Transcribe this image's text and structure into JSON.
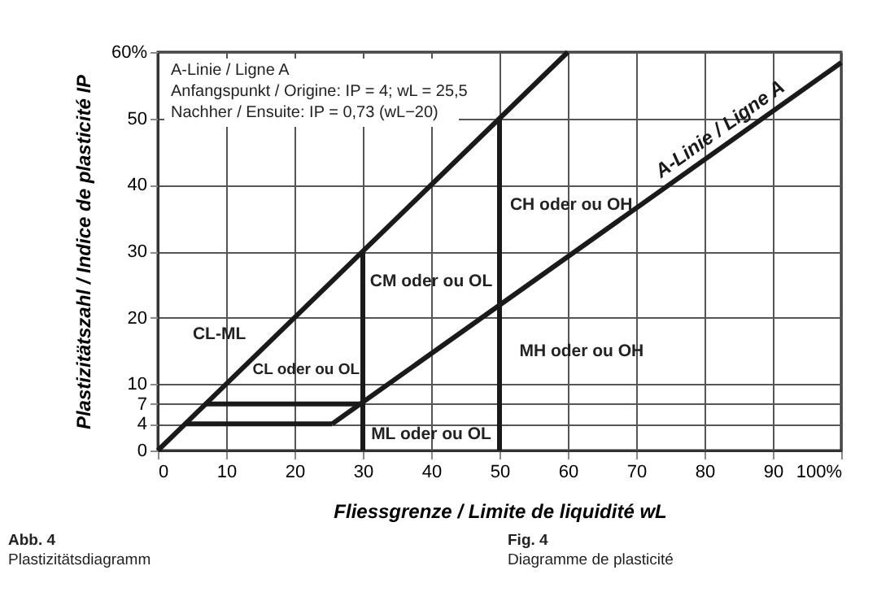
{
  "chart_data": {
    "type": "line",
    "xlabel": "Fliessgrenze / Limite de liquidité wL",
    "ylabel": "Plastizitätszahl / Indice de plasticité IP",
    "xlim": [
      0,
      100
    ],
    "ylim": [
      0,
      60
    ],
    "xticks": [
      0,
      10,
      20,
      30,
      40,
      50,
      60,
      70,
      80,
      90,
      {
        "value": 100,
        "label": "100%"
      }
    ],
    "yticks": [
      0,
      4,
      7,
      10,
      20,
      30,
      40,
      50,
      {
        "value": 60,
        "label": "60%"
      }
    ],
    "grid": true,
    "line_style": "solid",
    "marker": "none",
    "series": [
      {
        "color": "#1a1a1a",
        "x": [
          0,
          60
        ],
        "values": [
          0,
          60
        ]
      },
      {
        "name": "A-Linie / Ligne A",
        "color": "#1a1a1a",
        "x": [
          25.5,
          100
        ],
        "values": [
          4,
          58.4
        ]
      },
      {
        "color": "#1a1a1a",
        "x": [
          4,
          25.5
        ],
        "values": [
          4,
          4
        ]
      },
      {
        "color": "#1a1a1a",
        "x": [
          7,
          29.6
        ],
        "values": [
          7,
          7
        ]
      },
      {
        "color": "#1a1a1a",
        "x": [
          30,
          30
        ],
        "values": [
          0,
          30
        ]
      },
      {
        "color": "#1a1a1a",
        "x": [
          50,
          50
        ],
        "values": [
          0,
          50
        ]
      }
    ],
    "annotations": [
      "A-Linie / Ligne A",
      "Anfangspunkt / Origine: IP = 4; wL = 25,5",
      "Nachher / Ensuite: IP = 0,73 (wL−20)",
      "CL-ML",
      "CL oder ou OL",
      "CM oder ou OL",
      "ML oder ou OL",
      "CH oder ou OH",
      "MH oder ou OH",
      "Abb. 4",
      "Plastizitätsdiagramm",
      "Fig. 4",
      "Diagramme de plasticité"
    ]
  }
}
